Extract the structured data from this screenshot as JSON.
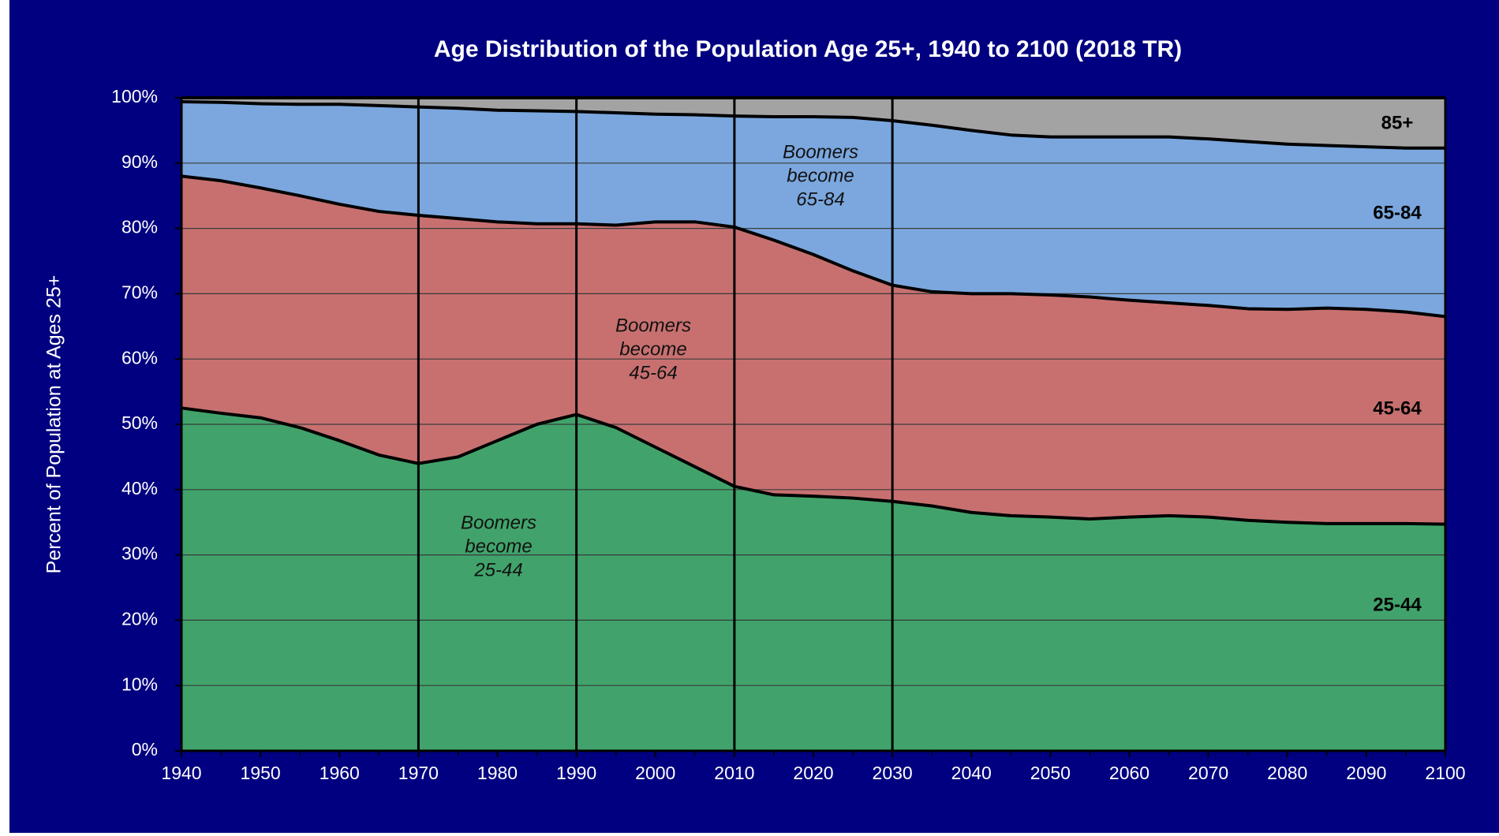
{
  "chart_data": {
    "type": "stacked_area",
    "title": "Age Distribution  of the Population Age 25+, 1940 to 2100 (2018 TR)",
    "y_label": "Percent of Population at Ages 25+",
    "x": [
      1940,
      1945,
      1950,
      1955,
      1960,
      1965,
      1970,
      1975,
      1980,
      1985,
      1990,
      1995,
      2000,
      2005,
      2010,
      2015,
      2020,
      2025,
      2030,
      2035,
      2040,
      2045,
      2050,
      2055,
      2060,
      2065,
      2070,
      2075,
      2080,
      2085,
      2090,
      2095,
      2100
    ],
    "series": [
      {
        "name": "25-44",
        "color": "#41a36b",
        "values": [
          52.5,
          51.7,
          51,
          49.5,
          47.5,
          45.3,
          44,
          45,
          47.5,
          50,
          51.5,
          49.5,
          46.5,
          43.5,
          40.5,
          39.2,
          39,
          38.7,
          38.2,
          37.5,
          36.5,
          36,
          35.8,
          35.5,
          35.8,
          36,
          35.8,
          35.3,
          35,
          34.8,
          34.8,
          34.8,
          34.7
        ]
      },
      {
        "name": "45-64",
        "color": "#c87070",
        "values": [
          35.5,
          35.6,
          35.2,
          35.5,
          36.2,
          37.3,
          38,
          36.5,
          33.5,
          30.7,
          29.2,
          31,
          34.5,
          37.5,
          39.7,
          39,
          37,
          34.8,
          33.1,
          32.8,
          33.5,
          34,
          34,
          34,
          33.2,
          32.6,
          32.4,
          32.4,
          32.6,
          33,
          32.8,
          32.4,
          31.8
        ]
      },
      {
        "name": "65-84",
        "color": "#7ba7de",
        "values": [
          11.4,
          12,
          12.9,
          14,
          15.3,
          16.2,
          16.6,
          16.9,
          17.1,
          17.3,
          17.2,
          17.2,
          16.5,
          16.4,
          17,
          18.9,
          21.1,
          23.5,
          25.2,
          25.5,
          25,
          24.3,
          24.2,
          24.5,
          25,
          25.4,
          25.5,
          25.6,
          25.3,
          24.9,
          24.9,
          25.1,
          25.8
        ]
      },
      {
        "name": "85+",
        "color": "#a3a3a3",
        "values": [
          0.6,
          0.7,
          0.9,
          1,
          1,
          1.2,
          1.4,
          1.6,
          1.9,
          2,
          2.1,
          2.3,
          2.5,
          2.6,
          2.8,
          2.9,
          2.9,
          3,
          3.5,
          4.2,
          5,
          5.7,
          6,
          6,
          6,
          6,
          6.3,
          6.7,
          7.1,
          7.3,
          7.5,
          7.7,
          7.7
        ]
      }
    ],
    "xlim": [
      1940,
      2100
    ],
    "xticks": [
      1940,
      1950,
      1960,
      1970,
      1980,
      1990,
      2000,
      2010,
      2020,
      2030,
      2040,
      2050,
      2060,
      2070,
      2080,
      2090,
      2100
    ],
    "ylim": [
      0,
      100
    ],
    "yticks": [
      {
        "value": 0,
        "label": "0%"
      },
      {
        "value": 10,
        "label": "10%"
      },
      {
        "value": 20,
        "label": "20%"
      },
      {
        "value": 30,
        "label": "30%"
      },
      {
        "value": 40,
        "label": "40%"
      },
      {
        "value": 50,
        "label": "50%"
      },
      {
        "value": 60,
        "label": "60%"
      },
      {
        "value": 70,
        "label": "70%"
      },
      {
        "value": 80,
        "label": "80%"
      },
      {
        "value": 90,
        "label": "90%"
      },
      {
        "value": 100,
        "label": "100%"
      }
    ],
    "grid": true,
    "vlines": [
      1970,
      1990,
      2010,
      2030
    ],
    "annotations": [
      {
        "lines": [
          "Boomers",
          "become",
          "25-44"
        ]
      },
      {
        "lines": [
          "Boomers",
          "become",
          "45-64"
        ]
      },
      {
        "lines": [
          "Boomers",
          "become",
          "65-84"
        ]
      }
    ]
  }
}
